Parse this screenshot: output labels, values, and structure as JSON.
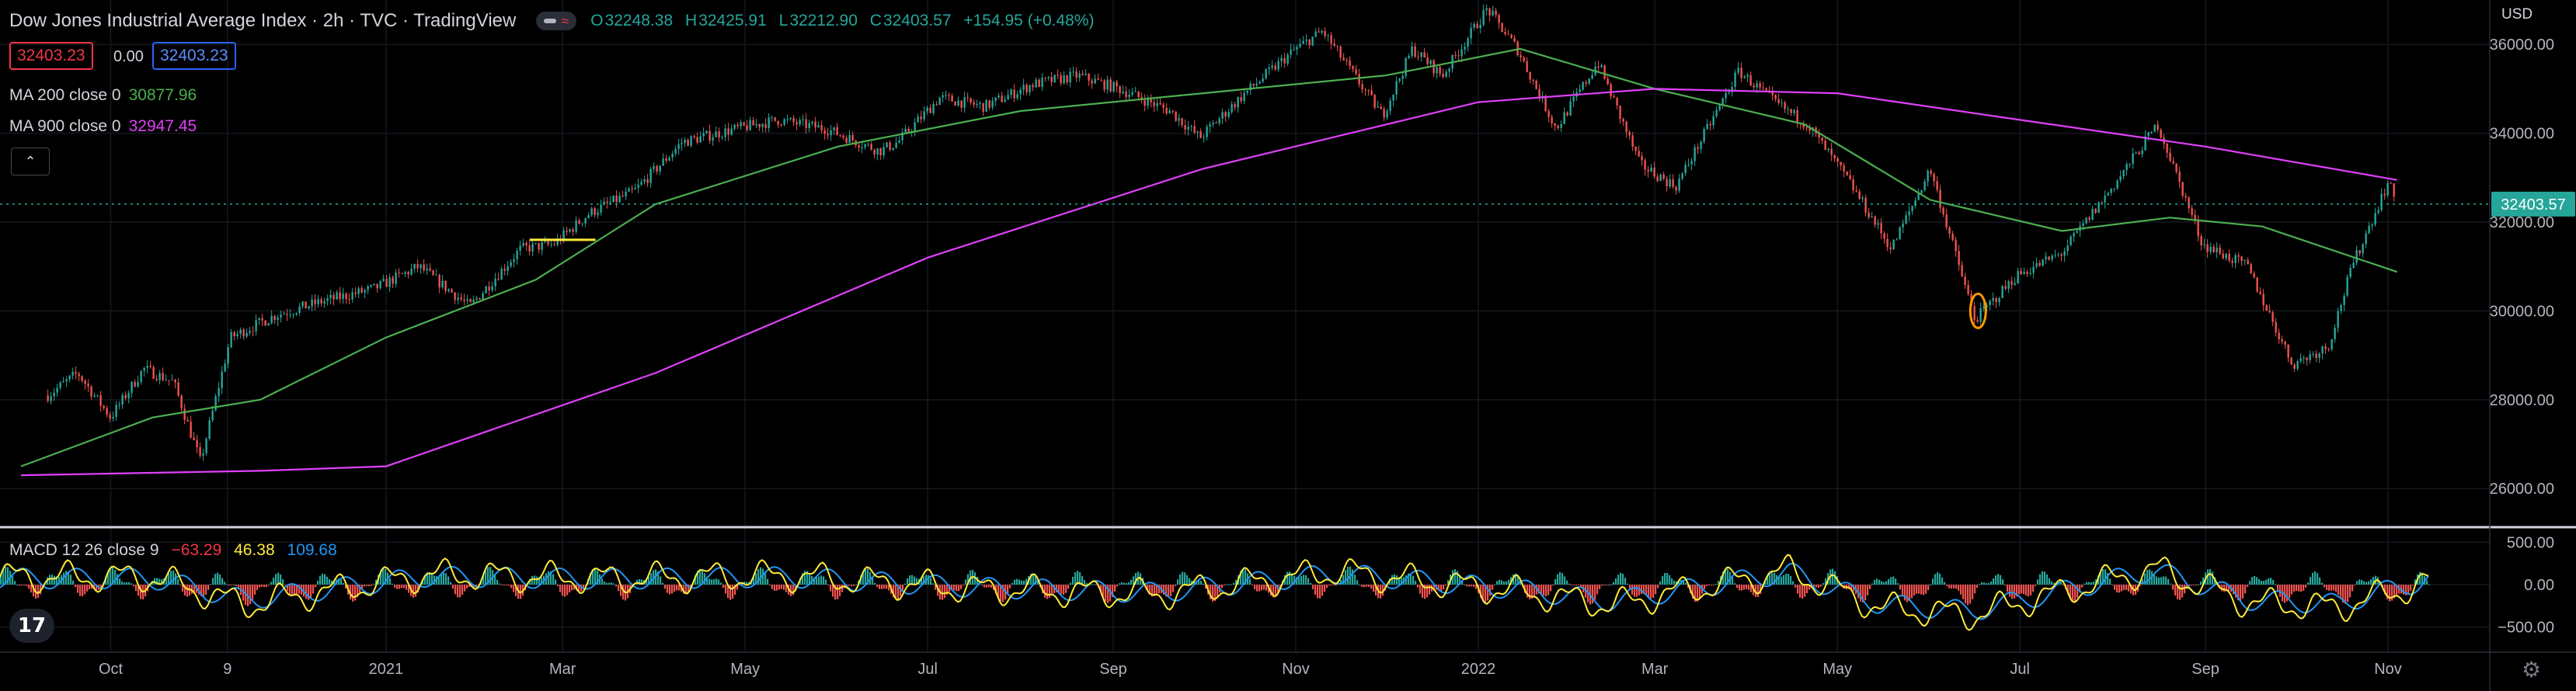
{
  "header": {
    "title": "Dow Jones Industrial Average Index · 2h · TVC · TradingView",
    "open_key": "O",
    "open": "32248.38",
    "high_key": "H",
    "high": "32425.91",
    "low_key": "L",
    "low": "32212.90",
    "close_key": "C",
    "close": "32403.57",
    "change": "+154.95 (+0.48%)"
  },
  "price_boxes": {
    "bid": "32403.23",
    "spread": "0.00",
    "ask": "32403.23"
  },
  "legend": [
    {
      "label": "MA 200 close 0",
      "value": "30877.96",
      "color": "#4caf50"
    },
    {
      "label": "MA 900 close 0",
      "value": "32947.45",
      "color": "#e040fb"
    }
  ],
  "macd_legend": {
    "label": "MACD 12 26 close 9",
    "histogram": "−63.29",
    "macd": "46.38",
    "signal": "109.68",
    "colors": {
      "histogram": "#f23645",
      "macd": "#ffeb3b",
      "signal": "#2196f3"
    }
  },
  "currency": "USD",
  "icons": {
    "collapse": "chevron-up-icon",
    "visibility": "eye-icon",
    "logo": "tradingview-logo",
    "settings": "gear-icon"
  },
  "chart_data": [
    {
      "type": "candlestick",
      "title": "Dow Jones Industrial Average Index · 2h · TVC · TradingView",
      "ylim": [
        25200,
        37000
      ],
      "y_ticks": [
        26000,
        28000,
        30000,
        32000,
        34000,
        36000
      ],
      "y_tick_labels": [
        "26000.00",
        "28000.00",
        "30000.00",
        "32000.00",
        "34000.00",
        "36000.00"
      ],
      "x_tick_labels": [
        "Oct",
        "9",
        "2021",
        "Mar",
        "May",
        "Jul",
        "Sep",
        "Nov",
        "2022",
        "Mar",
        "May",
        "Jul",
        "Sep",
        "Nov"
      ],
      "last_price_label": "32403.57",
      "grid": true,
      "series": [
        {
          "name": "Dow Jones Industrial Average",
          "x": [
            "2020-09-10",
            "2020-09-20",
            "2020-10-01",
            "2020-10-12",
            "2020-10-22",
            "2020-10-31",
            "2020-11-10",
            "2020-11-25",
            "2020-12-10",
            "2020-12-28",
            "2021-01-12",
            "2021-01-29",
            "2021-02-15",
            "2021-02-26",
            "2021-03-10",
            "2021-03-25",
            "2021-04-10",
            "2021-04-28",
            "2021-05-12",
            "2021-05-28",
            "2021-06-15",
            "2021-06-21",
            "2021-07-05",
            "2021-07-20",
            "2021-08-05",
            "2021-08-20",
            "2021-09-03",
            "2021-09-20",
            "2021-09-30",
            "2021-10-15",
            "2021-11-01",
            "2021-11-10",
            "2021-11-30",
            "2021-12-10",
            "2021-12-20",
            "2022-01-04",
            "2022-01-14",
            "2022-01-27",
            "2022-02-10",
            "2022-02-24",
            "2022-03-08",
            "2022-03-29",
            "2022-04-10",
            "2022-04-21",
            "2022-05-05",
            "2022-05-19",
            "2022-06-01",
            "2022-06-16",
            "2022-06-30",
            "2022-07-15",
            "2022-08-01",
            "2022-08-16",
            "2022-08-31",
            "2022-09-15",
            "2022-09-30",
            "2022-10-12",
            "2022-10-20",
            "2022-11-01",
            "2022-11-04"
          ],
          "close": [
            28100,
            28600,
            27600,
            28700,
            28400,
            26600,
            29400,
            29900,
            30200,
            30500,
            31000,
            30100,
            31400,
            31500,
            32200,
            32700,
            33800,
            34100,
            34300,
            34100,
            33600,
            33800,
            34800,
            34600,
            35100,
            35300,
            35000,
            34500,
            33900,
            34900,
            35900,
            36300,
            34400,
            35900,
            35300,
            36800,
            35900,
            34100,
            35600,
            33300,
            32800,
            35400,
            34700,
            34200,
            32900,
            31400,
            33200,
            29800,
            30800,
            31300,
            32800,
            34200,
            31500,
            31000,
            28800,
            29200,
            31000,
            32900,
            32400
          ]
        },
        {
          "name": "MA 200 close 0",
          "x": [
            "2020-09-01",
            "2020-10-15",
            "2020-11-20",
            "2021-01-01",
            "2021-02-20",
            "2021-04-01",
            "2021-06-01",
            "2021-08-01",
            "2021-10-01",
            "2021-12-01",
            "2022-01-15",
            "2022-03-01",
            "2022-04-20",
            "2022-06-01",
            "2022-07-15",
            "2022-08-20",
            "2022-09-20",
            "2022-11-04"
          ],
          "y": [
            26500,
            27600,
            28000,
            29400,
            30700,
            32400,
            33700,
            34500,
            34900,
            35300,
            35900,
            35000,
            34200,
            32500,
            31800,
            32100,
            31900,
            30877.96
          ]
        },
        {
          "name": "MA 900 close 0",
          "x": [
            "2020-09-01",
            "2020-11-20",
            "2021-01-01",
            "2021-04-01",
            "2021-07-01",
            "2021-10-01",
            "2022-01-01",
            "2022-03-01",
            "2022-05-01",
            "2022-07-01",
            "2022-09-01",
            "2022-11-04"
          ],
          "y": [
            26300,
            26400,
            26500,
            28600,
            31200,
            33200,
            34700,
            35000,
            34900,
            34300,
            33700,
            32947.45
          ]
        }
      ]
    },
    {
      "type": "line",
      "title": "MACD 12 26 close 9",
      "ylim": [
        -750,
        650
      ],
      "y_ticks": [
        500,
        0,
        -500
      ],
      "y_tick_labels": [
        "500.00",
        "0.00",
        "−500.00"
      ],
      "series": [
        {
          "name": "MACD",
          "x": [
            "2020-10",
            "2020-11",
            "2021-01",
            "2021-03",
            "2021-05",
            "2021-07",
            "2021-09",
            "2021-11",
            "2022-01",
            "2022-02",
            "2022-04",
            "2022-05",
            "2022-06",
            "2022-08",
            "2022-09",
            "2022-10",
            "2022-11"
          ],
          "y": [
            150,
            -400,
            200,
            120,
            180,
            -80,
            -200,
            260,
            -150,
            -400,
            280,
            -450,
            -600,
            320,
            -350,
            -450,
            46.38
          ]
        },
        {
          "name": "Signal",
          "x": [
            "2020-10",
            "2020-11",
            "2021-01",
            "2021-03",
            "2021-05",
            "2021-07",
            "2021-09",
            "2021-11",
            "2022-01",
            "2022-02",
            "2022-04",
            "2022-05",
            "2022-06",
            "2022-08",
            "2022-09",
            "2022-10",
            "2022-11"
          ],
          "y": [
            120,
            -300,
            160,
            110,
            150,
            -50,
            -160,
            220,
            -100,
            -330,
            240,
            -380,
            -520,
            280,
            -300,
            -380,
            109.68
          ]
        },
        {
          "name": "Histogram",
          "x": [
            "2022-11"
          ],
          "y": [
            -63.29
          ]
        }
      ]
    }
  ]
}
